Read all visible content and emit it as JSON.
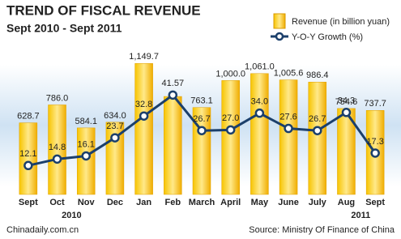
{
  "chart_data": {
    "type": "combo",
    "title": "TREND OF FISCAL REVENUE",
    "subtitle": "Sept 2010 - Sept 2011",
    "categories": [
      "Sept",
      "Oct",
      "Nov",
      "Dec",
      "Jan",
      "Feb",
      "March",
      "April",
      "May",
      "June",
      "July",
      "Aug",
      "Sept"
    ],
    "series": [
      {
        "name": "Revenue (in billion yuan)",
        "type": "bar",
        "color": "#f5b800",
        "values": [
          628.7,
          786.0,
          584.1,
          634.0,
          1149.7,
          860,
          763.1,
          1000.0,
          1061.0,
          1005.6,
          986.4,
          754.6,
          737.7
        ],
        "value_labels": [
          "628.7",
          "786.0",
          "584.1",
          "634.0",
          "1,149.7",
          null,
          "763.1",
          "1,000.0",
          "1,061.0",
          "1,005.6",
          "986.4",
          "754.6",
          "737.7"
        ]
      },
      {
        "name": "Y-O-Y Growth (%)",
        "type": "line",
        "color": "#1b3f6b",
        "axis": "y2",
        "values": [
          12.1,
          14.8,
          16.1,
          23.7,
          32.8,
          41.57,
          26.7,
          27.0,
          34.0,
          27.6,
          26.7,
          34.3,
          17.3
        ],
        "value_labels": [
          "12.1",
          "14.8",
          "16.1",
          "23.7",
          "32.8",
          "41.57",
          "26.7",
          "27.0",
          "34.0",
          "27.6",
          "26.7",
          "34.3",
          "17.3"
        ]
      }
    ],
    "ylim": [
      0,
      1280
    ],
    "y2lim": [
      0,
      61
    ],
    "year_labels": [
      "2010",
      "2011"
    ],
    "credit": "Chinadaily.com.cn",
    "source": "Source: Ministry Of Finance of China"
  }
}
